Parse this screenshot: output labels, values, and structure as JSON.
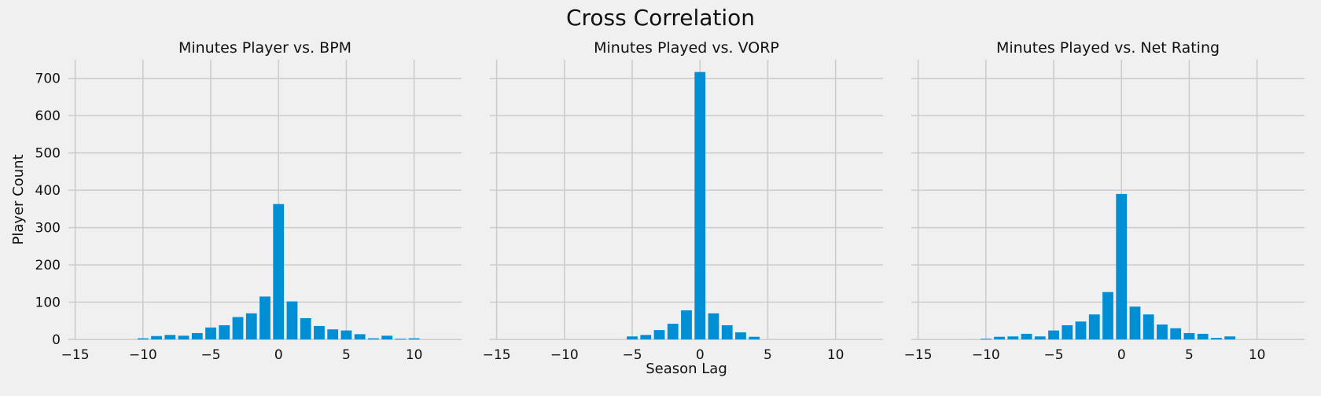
{
  "figure_title": "Cross Correlation",
  "colors": {
    "background": "#f0f0f0",
    "bar": "#008fd5",
    "grid": "#cbcbcb"
  },
  "chart_data": [
    {
      "type": "bar",
      "title": "Minutes Player vs. BPM",
      "xlabel": "",
      "ylabel": "Player Count",
      "xlim": [
        -15.5,
        13.5
      ],
      "ylim": [
        0,
        750
      ],
      "xticks": [
        -15,
        -10,
        -5,
        0,
        5,
        10
      ],
      "yticks": [
        0,
        100,
        200,
        300,
        400,
        500,
        600,
        700
      ],
      "xtick_labels": [
        "−15",
        "−10",
        "−5",
        "0",
        "5",
        "10"
      ],
      "ytick_labels": [
        "0",
        "100",
        "200",
        "300",
        "400",
        "500",
        "600",
        "700"
      ],
      "grid": true,
      "x": [
        -10,
        -9,
        -8,
        -7,
        -6,
        -5,
        -4,
        -3,
        -2,
        -1,
        0,
        1,
        2,
        3,
        4,
        5,
        6,
        7,
        8,
        9,
        10
      ],
      "values": [
        3,
        9,
        12,
        10,
        17,
        32,
        38,
        60,
        70,
        115,
        363,
        102,
        57,
        36,
        27,
        24,
        14,
        3,
        10,
        2,
        3
      ]
    },
    {
      "type": "bar",
      "title": "Minutes Played vs. VORP",
      "xlabel": "Season Lag",
      "ylabel": "",
      "xlim": [
        -15.5,
        13.5
      ],
      "ylim": [
        0,
        750
      ],
      "xticks": [
        -15,
        -10,
        -5,
        0,
        5,
        10
      ],
      "yticks": [
        0,
        100,
        200,
        300,
        400,
        500,
        600,
        700
      ],
      "xtick_labels": [
        "−15",
        "−10",
        "−5",
        "0",
        "5",
        "10"
      ],
      "ytick_labels": [],
      "grid": true,
      "x": [
        -5,
        -4,
        -3,
        -2,
        -1,
        0,
        1,
        2,
        3,
        4
      ],
      "values": [
        8,
        12,
        25,
        42,
        78,
        717,
        70,
        38,
        19,
        7
      ]
    },
    {
      "type": "bar",
      "title": "Minutes Played vs. Net Rating",
      "xlabel": "",
      "ylabel": "",
      "xlim": [
        -15.5,
        13.5
      ],
      "ylim": [
        0,
        750
      ],
      "xticks": [
        -15,
        -10,
        -5,
        0,
        5,
        10
      ],
      "yticks": [
        0,
        100,
        200,
        300,
        400,
        500,
        600,
        700
      ],
      "xtick_labels": [
        "−15",
        "−10",
        "−5",
        "0",
        "5",
        "10"
      ],
      "ytick_labels": [],
      "grid": true,
      "x": [
        -10,
        -9,
        -8,
        -7,
        -6,
        -5,
        -4,
        -3,
        -2,
        -1,
        0,
        1,
        2,
        3,
        4,
        5,
        6,
        7,
        8
      ],
      "values": [
        2,
        7,
        8,
        15,
        8,
        24,
        38,
        48,
        67,
        127,
        390,
        88,
        67,
        40,
        30,
        17,
        15,
        4,
        8
      ]
    }
  ]
}
